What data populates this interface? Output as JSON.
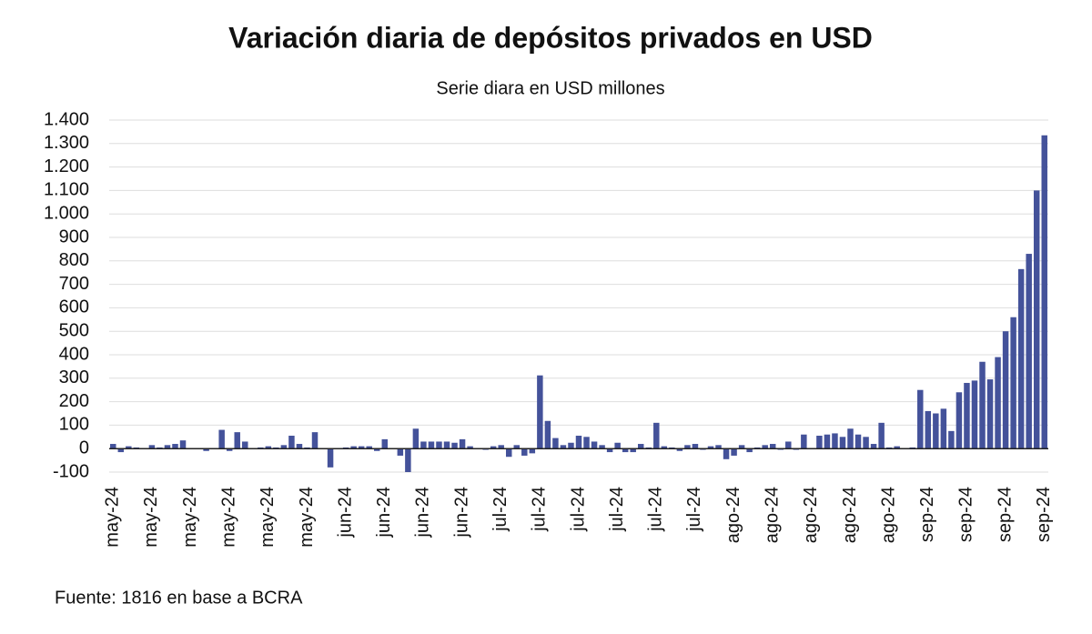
{
  "chart_data": {
    "type": "bar",
    "title": "Variación diaria de depósitos privados en USD",
    "subtitle": "Serie diara en USD millones",
    "source": "Fuente: 1816 en base a BCRA",
    "color": "#44529a",
    "grid": true,
    "ylim": [
      -100,
      1400
    ],
    "yticks": [
      -100,
      0,
      100,
      200,
      300,
      400,
      500,
      600,
      700,
      800,
      900,
      {
        "value": 1000,
        "label": "1.000"
      },
      {
        "value": 1100,
        "label": "1.100"
      },
      {
        "value": 1200,
        "label": "1.200"
      },
      {
        "value": 1300,
        "label": "1.300"
      },
      {
        "value": 1400,
        "label": "1.400"
      }
    ],
    "categories": [
      "may-24",
      null,
      null,
      null,
      null,
      "may-24",
      null,
      null,
      null,
      null,
      "may-24",
      null,
      null,
      null,
      null,
      "may-24",
      null,
      null,
      null,
      null,
      "may-24",
      null,
      null,
      null,
      null,
      "may-24",
      null,
      null,
      null,
      null,
      "jun-24",
      null,
      null,
      null,
      null,
      "jun-24",
      null,
      null,
      null,
      null,
      "jun-24",
      null,
      null,
      null,
      null,
      "jun-24",
      null,
      null,
      null,
      null,
      "jul-24",
      null,
      null,
      null,
      null,
      "jul-24",
      null,
      null,
      null,
      null,
      "jul-24",
      null,
      null,
      null,
      null,
      "jul-24",
      null,
      null,
      null,
      null,
      "jul-24",
      null,
      null,
      null,
      null,
      "jul-24",
      null,
      null,
      null,
      null,
      "ago-24",
      null,
      null,
      null,
      null,
      "ago-24",
      null,
      null,
      null,
      null,
      "ago-24",
      null,
      null,
      null,
      null,
      "ago-24",
      null,
      null,
      null,
      null,
      "ago-24",
      null,
      null,
      null,
      null,
      "sep-24",
      null,
      null,
      null,
      null,
      "sep-24",
      null,
      null,
      null,
      null,
      "sep-24",
      null,
      null,
      null,
      null,
      "sep-24"
    ],
    "values": [
      20,
      -15,
      10,
      5,
      0,
      15,
      5,
      15,
      20,
      35,
      0,
      0,
      -10,
      0,
      80,
      -10,
      70,
      30,
      0,
      5,
      10,
      5,
      15,
      55,
      20,
      5,
      70,
      0,
      -80,
      0,
      5,
      10,
      10,
      10,
      -10,
      40,
      0,
      -30,
      -100,
      85,
      30,
      30,
      30,
      30,
      25,
      40,
      10,
      0,
      -5,
      10,
      15,
      -35,
      15,
      -30,
      -20,
      312,
      118,
      45,
      15,
      25,
      55,
      50,
      30,
      15,
      -15,
      25,
      -15,
      -15,
      20,
      5,
      110,
      10,
      5,
      -10,
      15,
      20,
      -5,
      10,
      15,
      -45,
      -30,
      15,
      -15,
      5,
      15,
      20,
      -5,
      30,
      -5,
      60,
      0,
      55,
      60,
      65,
      50,
      85,
      60,
      50,
      20,
      110,
      5,
      10,
      0,
      5,
      250,
      160,
      150,
      170,
      75,
      240,
      280,
      290,
      370,
      295,
      390,
      500,
      560,
      765,
      830,
      1100,
      1335
    ]
  }
}
